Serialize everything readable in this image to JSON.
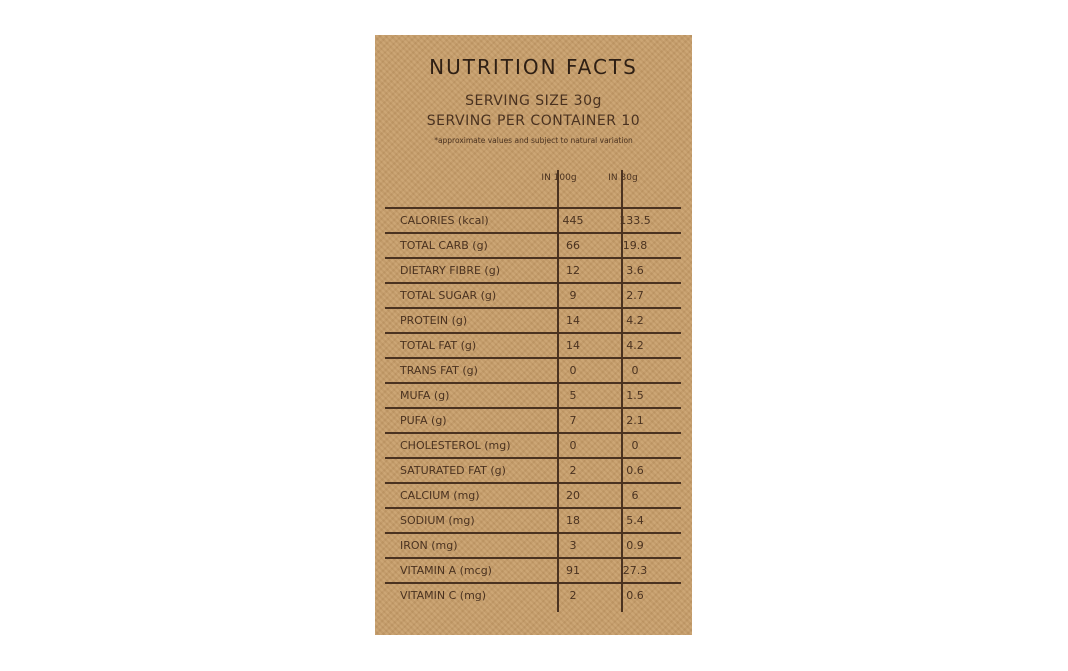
{
  "title": "NUTRITION FACTS",
  "serving_size": "SERVING SIZE 30g",
  "servings_per_container": "SERVING PER CONTAINER 10",
  "note": "*approximate values and subject to natural variation",
  "columns": [
    "IN 100g",
    "IN 30g"
  ],
  "rows": [
    {
      "label": "CALORIES (kcal)",
      "per100": "445",
      "per30": "133.5"
    },
    {
      "label": "TOTAL CARB (g)",
      "per100": "66",
      "per30": "19.8"
    },
    {
      "label": "DIETARY FIBRE (g)",
      "per100": "12",
      "per30": "3.6"
    },
    {
      "label": "TOTAL SUGAR (g)",
      "per100": "9",
      "per30": "2.7"
    },
    {
      "label": "PROTEIN (g)",
      "per100": "14",
      "per30": "4.2"
    },
    {
      "label": "TOTAL FAT (g)",
      "per100": "14",
      "per30": "4.2"
    },
    {
      "label": "TRANS FAT (g)",
      "per100": "0",
      "per30": "0"
    },
    {
      "label": "MUFA (g)",
      "per100": "5",
      "per30": "1.5"
    },
    {
      "label": "PUFA (g)",
      "per100": "7",
      "per30": "2.1"
    },
    {
      "label": "CHOLESTEROL (mg)",
      "per100": "0",
      "per30": "0"
    },
    {
      "label": "SATURATED FAT (g)",
      "per100": "2",
      "per30": "0.6"
    },
    {
      "label": "CALCIUM (mg)",
      "per100": "20",
      "per30": "6"
    },
    {
      "label": "SODIUM (mg)",
      "per100": "18",
      "per30": "5.4"
    },
    {
      "label": "IRON (mg)",
      "per100": "3",
      "per30": "0.9"
    },
    {
      "label": "VITAMIN A (mcg)",
      "per100": "91",
      "per30": "27.3"
    },
    {
      "label": "VITAMIN C (mg)",
      "per100": "2",
      "per30": "0.6"
    }
  ],
  "colors": {
    "background": "#c79d68",
    "text": "#3b2818"
  }
}
